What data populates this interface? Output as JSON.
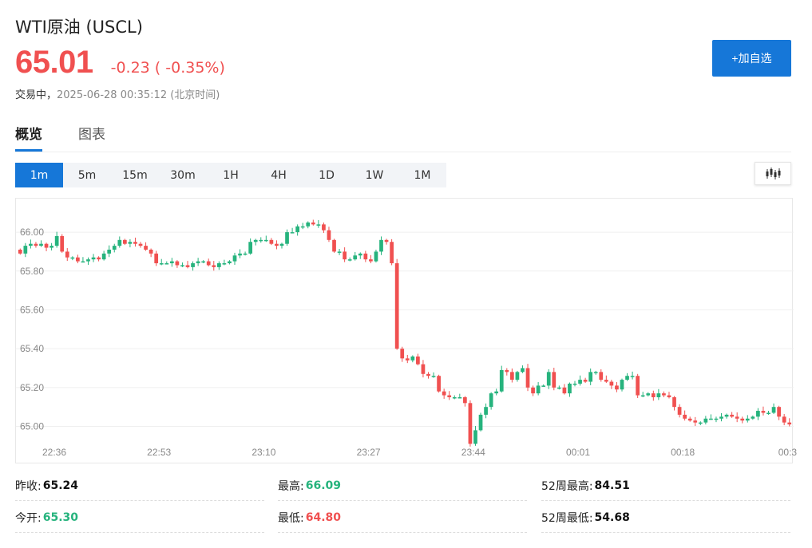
{
  "header": {
    "title": "WTI原油 (USCL)",
    "price": "65.01",
    "change": "-0.23 ( -0.35%)",
    "status_label": "交易中，",
    "timestamp": "2025-06-28 00:35:12 (北京时间)",
    "add_watchlist": "+加自选"
  },
  "tabs": [
    {
      "label": "概览",
      "active": true
    },
    {
      "label": "图表",
      "active": false
    }
  ],
  "periods": [
    {
      "label": "1m",
      "active": true
    },
    {
      "label": "5m"
    },
    {
      "label": "15m"
    },
    {
      "label": "30m"
    },
    {
      "label": "1H"
    },
    {
      "label": "4H"
    },
    {
      "label": "1D"
    },
    {
      "label": "1W"
    },
    {
      "label": "1M"
    }
  ],
  "chart_type_icon": "candlestick-icon",
  "colors": {
    "up": "#26b37d",
    "down": "#f05050",
    "accent": "#1677d8"
  },
  "stats": {
    "prev_close": {
      "label": "昨收:",
      "value": "65.24"
    },
    "open": {
      "label": "今开:",
      "value": "65.30"
    },
    "high": {
      "label": "最高:",
      "value": "66.09"
    },
    "low": {
      "label": "最低:",
      "value": "64.80"
    },
    "high_52w": {
      "label": "52周最高:",
      "value": "84.51"
    },
    "low_52w": {
      "label": "52周最低:",
      "value": "54.68"
    }
  },
  "chart_data": {
    "type": "candlestick",
    "y_ticks": [
      "66.00",
      "65.80",
      "65.60",
      "65.40",
      "65.20",
      "65.00"
    ],
    "x_ticks": [
      "22:36",
      "22:53",
      "23:10",
      "23:27",
      "23:44",
      "00:01",
      "00:18",
      "00:3"
    ],
    "ylim": [
      64.92,
      66.14
    ],
    "grid": true,
    "close": [
      65.89,
      65.93,
      65.94,
      65.93,
      65.94,
      65.92,
      65.93,
      65.98,
      65.9,
      65.87,
      65.87,
      65.85,
      65.85,
      65.86,
      65.87,
      65.86,
      65.89,
      65.91,
      65.93,
      65.96,
      65.94,
      65.95,
      65.94,
      65.93,
      65.91,
      65.89,
      65.84,
      65.84,
      65.84,
      65.85,
      65.83,
      65.83,
      65.82,
      65.84,
      65.85,
      65.85,
      65.83,
      65.82,
      65.84,
      65.84,
      65.85,
      65.88,
      65.89,
      65.89,
      65.95,
      65.96,
      65.96,
      65.96,
      65.94,
      65.93,
      65.94,
      66.0,
      66.0,
      66.03,
      66.03,
      66.05,
      66.04,
      66.04,
      66.01,
      65.96,
      65.9,
      65.9,
      65.86,
      65.86,
      65.88,
      65.89,
      65.86,
      65.85,
      65.9,
      65.96,
      65.95,
      65.84,
      65.4,
      65.35,
      65.34,
      65.36,
      65.32,
      65.27,
      65.26,
      65.26,
      65.18,
      65.16,
      65.15,
      65.15,
      65.15,
      65.12,
      64.91,
      64.98,
      65.06,
      65.1,
      65.17,
      65.18,
      65.29,
      65.28,
      65.24,
      65.28,
      65.3,
      65.2,
      65.17,
      65.21,
      65.21,
      65.28,
      65.2,
      65.2,
      65.17,
      65.22,
      65.22,
      65.24,
      65.23,
      65.28,
      65.28,
      65.24,
      65.23,
      65.21,
      65.19,
      65.24,
      65.26,
      65.26,
      65.16,
      65.16,
      65.17,
      65.15,
      65.17,
      65.16,
      65.15,
      65.1,
      65.06,
      65.04,
      65.03,
      65.02,
      65.02,
      65.04,
      65.04,
      65.04,
      65.05,
      65.06,
      65.05,
      65.04,
      65.03,
      65.04,
      65.05,
      65.08,
      65.07,
      65.07,
      65.1,
      65.05,
      65.02,
      65.01
    ],
    "open": [
      65.91,
      65.89,
      65.93,
      65.94,
      65.93,
      65.94,
      65.92,
      65.93,
      65.98,
      65.9,
      65.87,
      65.87,
      65.85,
      65.85,
      65.86,
      65.87,
      65.86,
      65.89,
      65.91,
      65.93,
      65.96,
      65.94,
      65.95,
      65.94,
      65.93,
      65.91,
      65.89,
      65.84,
      65.84,
      65.84,
      65.85,
      65.83,
      65.83,
      65.82,
      65.84,
      65.85,
      65.85,
      65.83,
      65.82,
      65.84,
      65.84,
      65.85,
      65.88,
      65.89,
      65.89,
      65.95,
      65.96,
      65.96,
      65.96,
      65.94,
      65.93,
      65.94,
      66.0,
      66.0,
      66.03,
      66.03,
      66.05,
      66.04,
      66.04,
      66.01,
      65.96,
      65.9,
      65.9,
      65.86,
      65.86,
      65.88,
      65.89,
      65.86,
      65.85,
      65.9,
      65.96,
      65.95,
      65.84,
      65.4,
      65.35,
      65.34,
      65.36,
      65.32,
      65.27,
      65.26,
      65.26,
      65.18,
      65.16,
      65.15,
      65.15,
      65.15,
      65.12,
      64.91,
      64.98,
      65.06,
      65.1,
      65.17,
      65.18,
      65.29,
      65.28,
      65.24,
      65.28,
      65.3,
      65.2,
      65.17,
      65.21,
      65.21,
      65.28,
      65.2,
      65.2,
      65.17,
      65.22,
      65.22,
      65.24,
      65.23,
      65.28,
      65.28,
      65.24,
      65.23,
      65.21,
      65.19,
      65.24,
      65.26,
      65.26,
      65.16,
      65.16,
      65.17,
      65.15,
      65.17,
      65.16,
      65.15,
      65.1,
      65.06,
      65.04,
      65.03,
      65.02,
      65.02,
      65.04,
      65.04,
      65.04,
      65.05,
      65.06,
      65.05,
      65.04,
      65.03,
      65.04,
      65.05,
      65.08,
      65.07,
      65.07,
      65.1,
      65.05,
      65.02
    ]
  }
}
